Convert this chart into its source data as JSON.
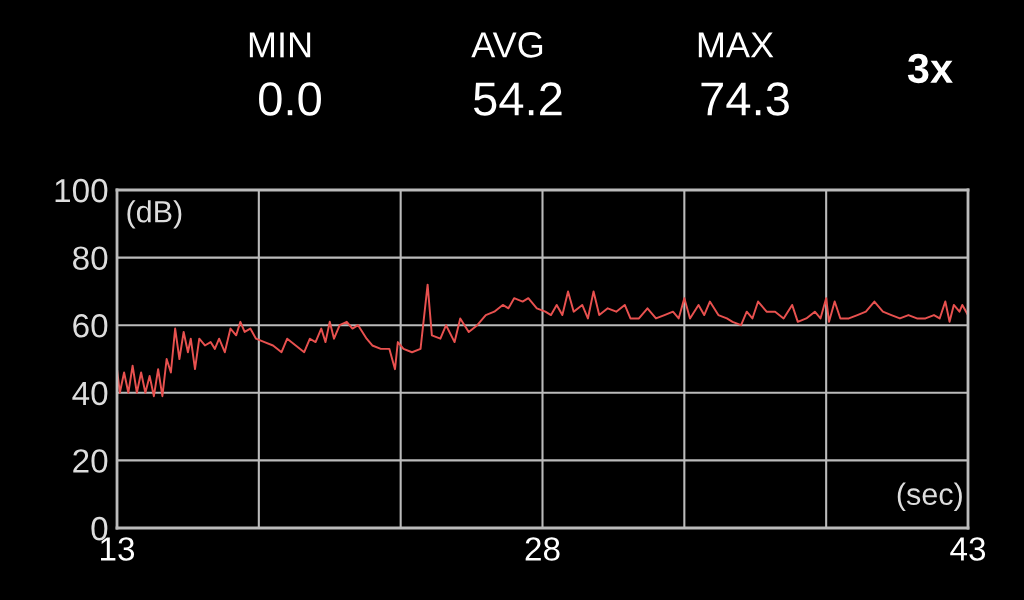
{
  "chart_data": {
    "type": "line",
    "xlabel": "(sec)",
    "ylabel": "(dB)",
    "annotations": [
      "MIN",
      "0.0",
      "AVG",
      "54.2",
      "MAX",
      "74.3",
      "3x"
    ],
    "xlim": [
      13,
      43
    ],
    "ylim": [
      0,
      100
    ],
    "xticks": [
      13,
      {
        "value": 18,
        "label": null
      },
      {
        "value": 23,
        "label": null
      },
      28,
      {
        "value": 33,
        "label": null
      },
      {
        "value": 38,
        "label": null
      },
      43
    ],
    "yticks": [
      0,
      20,
      40,
      60,
      80,
      100
    ],
    "grid": true,
    "marker": "none",
    "line_style": "solid",
    "series": [
      {
        "color": "#e8514f",
        "x": [
          13.0,
          13.1,
          13.25,
          13.4,
          13.55,
          13.7,
          13.85,
          14.0,
          14.15,
          14.3,
          14.45,
          14.6,
          14.75,
          14.9,
          15.05,
          15.2,
          15.35,
          15.5,
          15.6,
          15.75,
          15.9,
          16.1,
          16.3,
          16.45,
          16.6,
          16.8,
          17.0,
          17.2,
          17.35,
          17.5,
          17.7,
          17.9,
          18.2,
          18.5,
          18.8,
          19.0,
          19.3,
          19.6,
          19.8,
          20.0,
          20.2,
          20.35,
          20.5,
          20.65,
          20.85,
          21.1,
          21.3,
          21.5,
          21.8,
          22.0,
          22.3,
          22.6,
          22.8,
          22.9,
          23.1,
          23.4,
          23.7,
          23.95,
          24.1,
          24.4,
          24.6,
          24.9,
          25.1,
          25.4,
          25.7,
          26.0,
          26.3,
          26.6,
          26.8,
          27.0,
          27.3,
          27.5,
          27.8,
          28.1,
          28.3,
          28.5,
          28.7,
          28.9,
          29.1,
          29.4,
          29.6,
          29.8,
          30.0,
          30.3,
          30.6,
          30.9,
          31.1,
          31.4,
          31.7,
          32.0,
          32.3,
          32.6,
          32.8,
          33.0,
          33.2,
          33.5,
          33.7,
          33.9,
          34.2,
          34.5,
          34.7,
          35.0,
          35.2,
          35.4,
          35.6,
          35.9,
          36.2,
          36.5,
          36.8,
          37.0,
          37.3,
          37.6,
          37.8,
          38.0,
          38.1,
          38.3,
          38.5,
          38.8,
          39.1,
          39.4,
          39.7,
          40.0,
          40.3,
          40.6,
          40.9,
          41.2,
          41.5,
          41.8,
          42.0,
          42.2,
          42.35,
          42.5,
          42.7,
          42.8,
          43.0
        ],
        "values": [
          47,
          40,
          46,
          40,
          48,
          40,
          46,
          40,
          45,
          39,
          47,
          39,
          50,
          46,
          59,
          50,
          58,
          52,
          56,
          47,
          56,
          54,
          55,
          53,
          56,
          52,
          59,
          57,
          61,
          58,
          59,
          56,
          55,
          54,
          52,
          56,
          54,
          52,
          56,
          55,
          59,
          55,
          61,
          56,
          60,
          61,
          59,
          60,
          56,
          54,
          53,
          53,
          47,
          55,
          53,
          52,
          53,
          72,
          57,
          56,
          60,
          55,
          62,
          58,
          60,
          63,
          64,
          66,
          65,
          68,
          67,
          68,
          65,
          64,
          63,
          66,
          63,
          70,
          64,
          66,
          62,
          70,
          63,
          65,
          64,
          66,
          62,
          62,
          65,
          62,
          63,
          64,
          62,
          68,
          62,
          66,
          63,
          67,
          63,
          62,
          61,
          60,
          64,
          62,
          67,
          64,
          64,
          62,
          66,
          61,
          62,
          64,
          62,
          68,
          61,
          67,
          62,
          62,
          63,
          64,
          67,
          64,
          63,
          62,
          63,
          62,
          62,
          63,
          62,
          67,
          61,
          66,
          64,
          66,
          63
        ]
      }
    ]
  }
}
